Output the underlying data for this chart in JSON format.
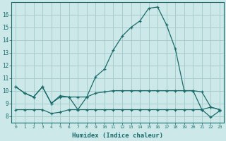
{
  "xlabel": "Humidex (Indice chaleur)",
  "bg_color": "#cde8e8",
  "grid_color": "#a8cccc",
  "line_color": "#1a6b6b",
  "xlim": [
    -0.5,
    23.5
  ],
  "ylim": [
    7.5,
    17.0
  ],
  "yticks": [
    8,
    9,
    10,
    11,
    12,
    13,
    14,
    15,
    16
  ],
  "xticks": [
    0,
    1,
    2,
    3,
    4,
    5,
    6,
    7,
    8,
    9,
    10,
    11,
    12,
    13,
    14,
    15,
    16,
    17,
    18,
    19,
    20,
    21,
    22,
    23
  ],
  "line_top_y": [
    10.3,
    9.8,
    9.5,
    10.3,
    9.0,
    9.5,
    9.5,
    8.5,
    9.5,
    11.1,
    11.7,
    13.2,
    14.3,
    15.0,
    15.5,
    16.5,
    16.6,
    15.2,
    13.3,
    10.0,
    10.0,
    9.9,
    8.7,
    8.5
  ],
  "line_mid_y": [
    10.3,
    9.8,
    9.5,
    10.3,
    9.0,
    9.6,
    9.5,
    9.5,
    9.5,
    9.8,
    9.9,
    10.0,
    10.0,
    10.0,
    10.0,
    10.0,
    10.0,
    10.0,
    10.0,
    10.0,
    10.0,
    8.5,
    8.7,
    8.5
  ],
  "line_bot_y": [
    8.5,
    8.5,
    8.5,
    8.5,
    8.2,
    8.3,
    8.5,
    8.5,
    8.5,
    8.5,
    8.5,
    8.5,
    8.5,
    8.5,
    8.5,
    8.5,
    8.5,
    8.5,
    8.5,
    8.5,
    8.5,
    8.5,
    7.9,
    8.4
  ]
}
